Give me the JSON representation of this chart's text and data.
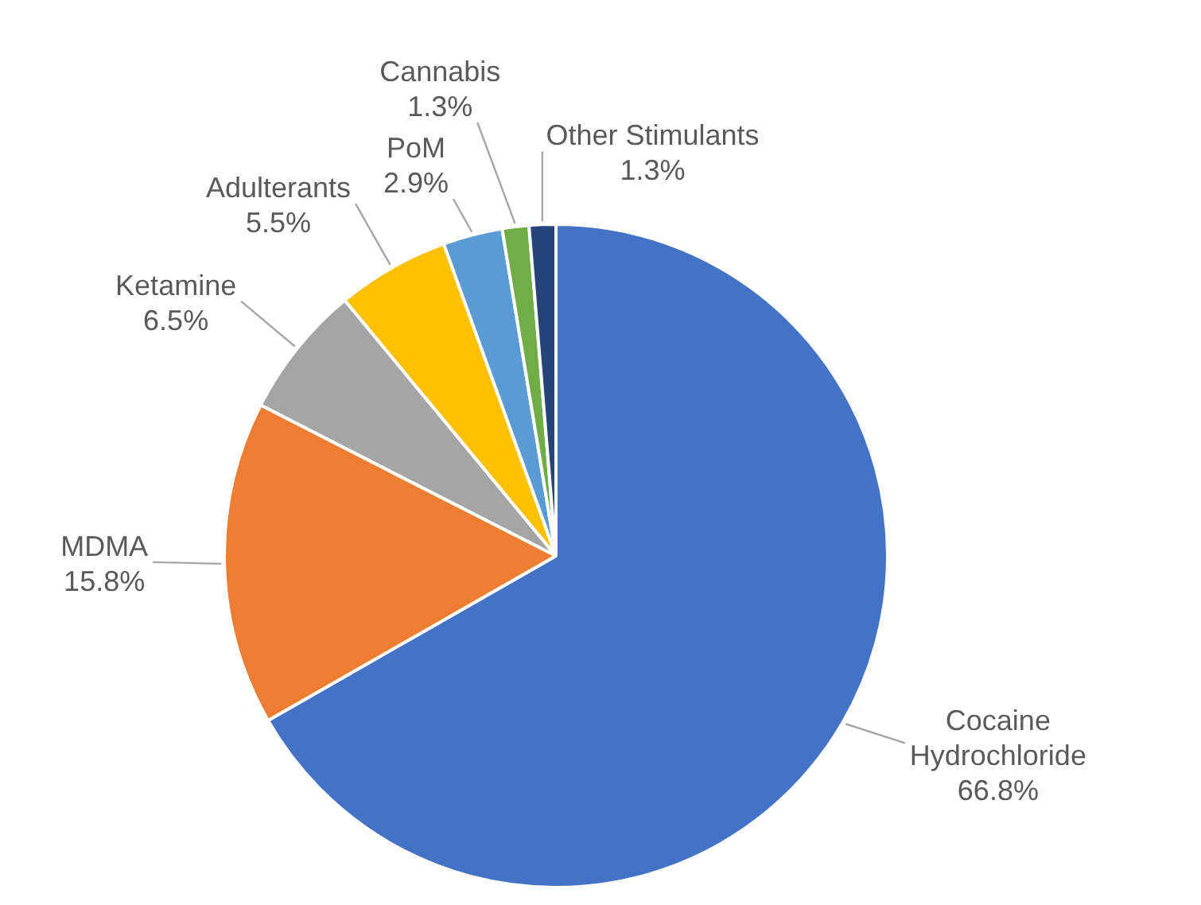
{
  "chart_data": {
    "type": "pie",
    "categories": [
      "Cocaine Hydrochloride",
      "MDMA",
      "Ketamine",
      "Adulterants",
      "PoM",
      "Cannabis",
      "Other Stimulants"
    ],
    "values": [
      66.8,
      15.8,
      6.5,
      5.5,
      2.9,
      1.3,
      1.3
    ],
    "colors": [
      "#4472c4",
      "#ed7d31",
      "#a5a5a5",
      "#ffc000",
      "#5b9bd5",
      "#70ad47",
      "#264478"
    ],
    "value_labels": [
      "66.8%",
      "15.8%",
      "6.5%",
      "5.5%",
      "2.9%",
      "1.3%",
      "1.3%"
    ],
    "legend": false
  }
}
